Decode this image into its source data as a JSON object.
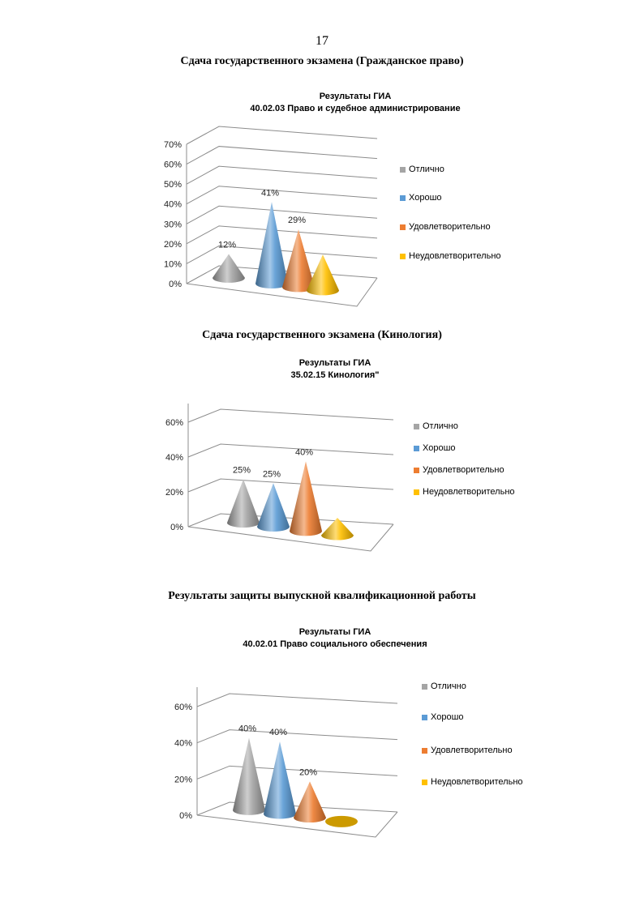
{
  "page_number": "17",
  "headings": [
    "Сдача государственного экзамена (Гражданское право)",
    "Сдача государственного экзамена (Кинология)",
    "Результаты защиты выпускной квалификационной работы"
  ],
  "colors": {
    "Отлично": "#a5a5a5",
    "Хорошо": "#5b9bd5",
    "Удовлетворительно": "#ed7d31",
    "Неудовлетворительно": "#ffc000"
  },
  "chart_data": [
    {
      "type": "bar",
      "style": "3d-cone",
      "title": [
        "Результаты ГИА",
        "40.02.03 Право и судебное администрирование"
      ],
      "categories": [
        "Отлично",
        "Хорошо",
        "Удовлетворительно",
        "Неудовлетворительно"
      ],
      "values": [
        12,
        41,
        29,
        18
      ],
      "data_labels": [
        "12%",
        "41%",
        "29%",
        ""
      ],
      "yticks": [
        "0%",
        "10%",
        "20%",
        "30%",
        "40%",
        "50%",
        "60%",
        "70%"
      ],
      "ylim": [
        0,
        70
      ],
      "legend": "right"
    },
    {
      "type": "bar",
      "style": "3d-cone",
      "title": [
        "Результаты ГИА",
        "35.02.15 Кинология\""
      ],
      "categories": [
        "Отлично",
        "Хорошо",
        "Удовлетворительно",
        "Неудовлетворительно"
      ],
      "values": [
        25,
        25,
        40,
        10
      ],
      "data_labels": [
        "25%",
        "25%",
        "40%",
        ""
      ],
      "yticks": [
        "0%",
        "20%",
        "40%",
        "60%"
      ],
      "ylim": [
        0,
        60
      ],
      "legend": "right"
    },
    {
      "type": "bar",
      "style": "3d-cone",
      "title": [
        "Результаты ГИА",
        "40.02.01 Право социального обеспечения"
      ],
      "categories": [
        "Отлично",
        "Хорошо",
        "Удовлетворительно",
        "Неудовлетворительно"
      ],
      "values": [
        40,
        40,
        20,
        0
      ],
      "data_labels": [
        "40%",
        "40%",
        "20%",
        ""
      ],
      "yticks": [
        "0%",
        "20%",
        "40%",
        "60%"
      ],
      "ylim": [
        0,
        60
      ],
      "legend": "right"
    }
  ]
}
